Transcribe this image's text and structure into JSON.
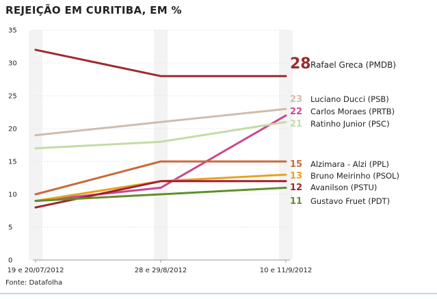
{
  "title": "REJEIÇÃO EM CURITIBA, EM %",
  "source": "Fonte: Datafolha",
  "chart_data": {
    "type": "line",
    "title": "REJEIÇÃO EM CURITIBA, EM %",
    "xlabel": "",
    "ylabel": "",
    "ylim": [
      0,
      35
    ],
    "yticks": [
      "0",
      "5",
      "10",
      "15",
      "20",
      "25",
      "30",
      "35"
    ],
    "categories": [
      "19 e 20/07/2012",
      "28 e 29/8/2012",
      "10 e 11/9/2012"
    ],
    "grid": true,
    "legend": "right",
    "series": [
      {
        "name": "Rafael Greca (PMDB)",
        "values": [
          32,
          28,
          28
        ],
        "color": "#9c2a2f",
        "label_value": "28"
      },
      {
        "name": "Luciano Ducci (PSB)",
        "values": [
          19,
          21,
          23
        ],
        "color": "#cfbcae",
        "label_value": "23"
      },
      {
        "name": "Carlos Moraes (PRTB)",
        "values": [
          9,
          11,
          22
        ],
        "color": "#c8478f",
        "label_value": "22"
      },
      {
        "name": "Ratinho Junior (PSC)",
        "values": [
          17,
          18,
          21
        ],
        "color": "#c4dba6",
        "label_value": "21"
      },
      {
        "name": "Alzimara - Alzi (PPL)",
        "values": [
          10,
          15,
          15
        ],
        "color": "#c96a3a",
        "label_value": "15"
      },
      {
        "name": "Bruno Meirinho (PSOL)",
        "values": [
          9,
          12,
          13
        ],
        "color": "#e9a21e",
        "label_value": "13"
      },
      {
        "name": "Avanilson (PSTU)",
        "values": [
          8,
          12,
          12
        ],
        "color": "#a31f2c",
        "label_value": "12"
      },
      {
        "name": "Gustavo Fruet (PDT)",
        "values": [
          9,
          10,
          11
        ],
        "color": "#5e8f2c",
        "label_value": "11"
      }
    ]
  }
}
